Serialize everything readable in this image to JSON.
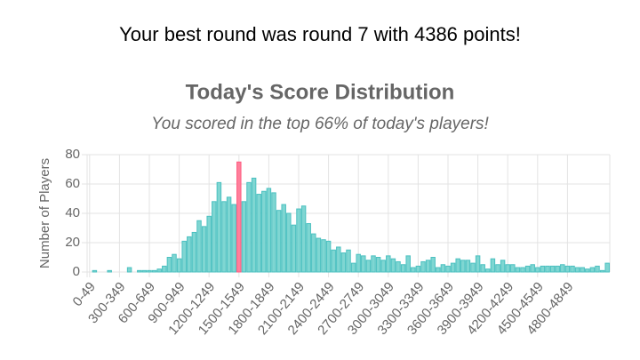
{
  "header": "Your best round was round 7 with 4386 points!",
  "chart_data": {
    "type": "bar",
    "title": "Today's Score Distribution",
    "subtitle": "You scored in the top 66% of today's players!",
    "y_label": "Number of Players",
    "categories": [
      "0-49",
      null,
      null,
      null,
      null,
      null,
      "300-349",
      null,
      null,
      null,
      null,
      null,
      "600-649",
      null,
      null,
      null,
      null,
      null,
      "900-949",
      null,
      null,
      null,
      null,
      null,
      "1200-1249",
      null,
      null,
      null,
      null,
      null,
      "1500-1549",
      null,
      null,
      null,
      null,
      null,
      "1800-1849",
      null,
      null,
      null,
      null,
      null,
      "2100-2149",
      null,
      null,
      null,
      null,
      null,
      "2400-2449",
      null,
      null,
      null,
      null,
      null,
      "2700-2749",
      null,
      null,
      null,
      null,
      null,
      "3000-3049",
      null,
      null,
      null,
      null,
      null,
      "3300-3349",
      null,
      null,
      null,
      null,
      null,
      "3600-3649",
      null,
      null,
      null,
      null,
      null,
      "3900-3949",
      null,
      null,
      null,
      null,
      null,
      "4200-4249",
      null,
      null,
      null,
      null,
      null,
      "4500-4549",
      null,
      null,
      null,
      null,
      null,
      "4800-4849",
      null,
      null,
      null,
      null,
      null,
      null,
      null,
      null
    ],
    "values": [
      0,
      1,
      0,
      0,
      1,
      0,
      0,
      0,
      3,
      0,
      1,
      1,
      1,
      1,
      2,
      4,
      10,
      12,
      9,
      21,
      24,
      27,
      35,
      31,
      38,
      48,
      61,
      48,
      51,
      46,
      75,
      48,
      61,
      64,
      53,
      55,
      57,
      54,
      42,
      46,
      40,
      32,
      43,
      45,
      33,
      26,
      23,
      22,
      21,
      15,
      17,
      13,
      15,
      6,
      12,
      11,
      8,
      11,
      10,
      8,
      11,
      9,
      7,
      5,
      11,
      3,
      4,
      7,
      8,
      10,
      3,
      5,
      4,
      6,
      9,
      8,
      8,
      6,
      11,
      5,
      2,
      9,
      5,
      8,
      5,
      5,
      3,
      3,
      4,
      5,
      3,
      4,
      4,
      4,
      4,
      5,
      4,
      4,
      3,
      3,
      2,
      3,
      4,
      1,
      6
    ],
    "color": "#7fd6d2",
    "border_color": "#4bc0c0",
    "highlight_category": "1500-1549",
    "highlight_color": "#ff7f9b",
    "highlight_border": "#ff5b80",
    "ylim": [
      0,
      80
    ],
    "yticks": [
      0,
      20,
      40,
      60,
      80
    ],
    "grid": true
  }
}
